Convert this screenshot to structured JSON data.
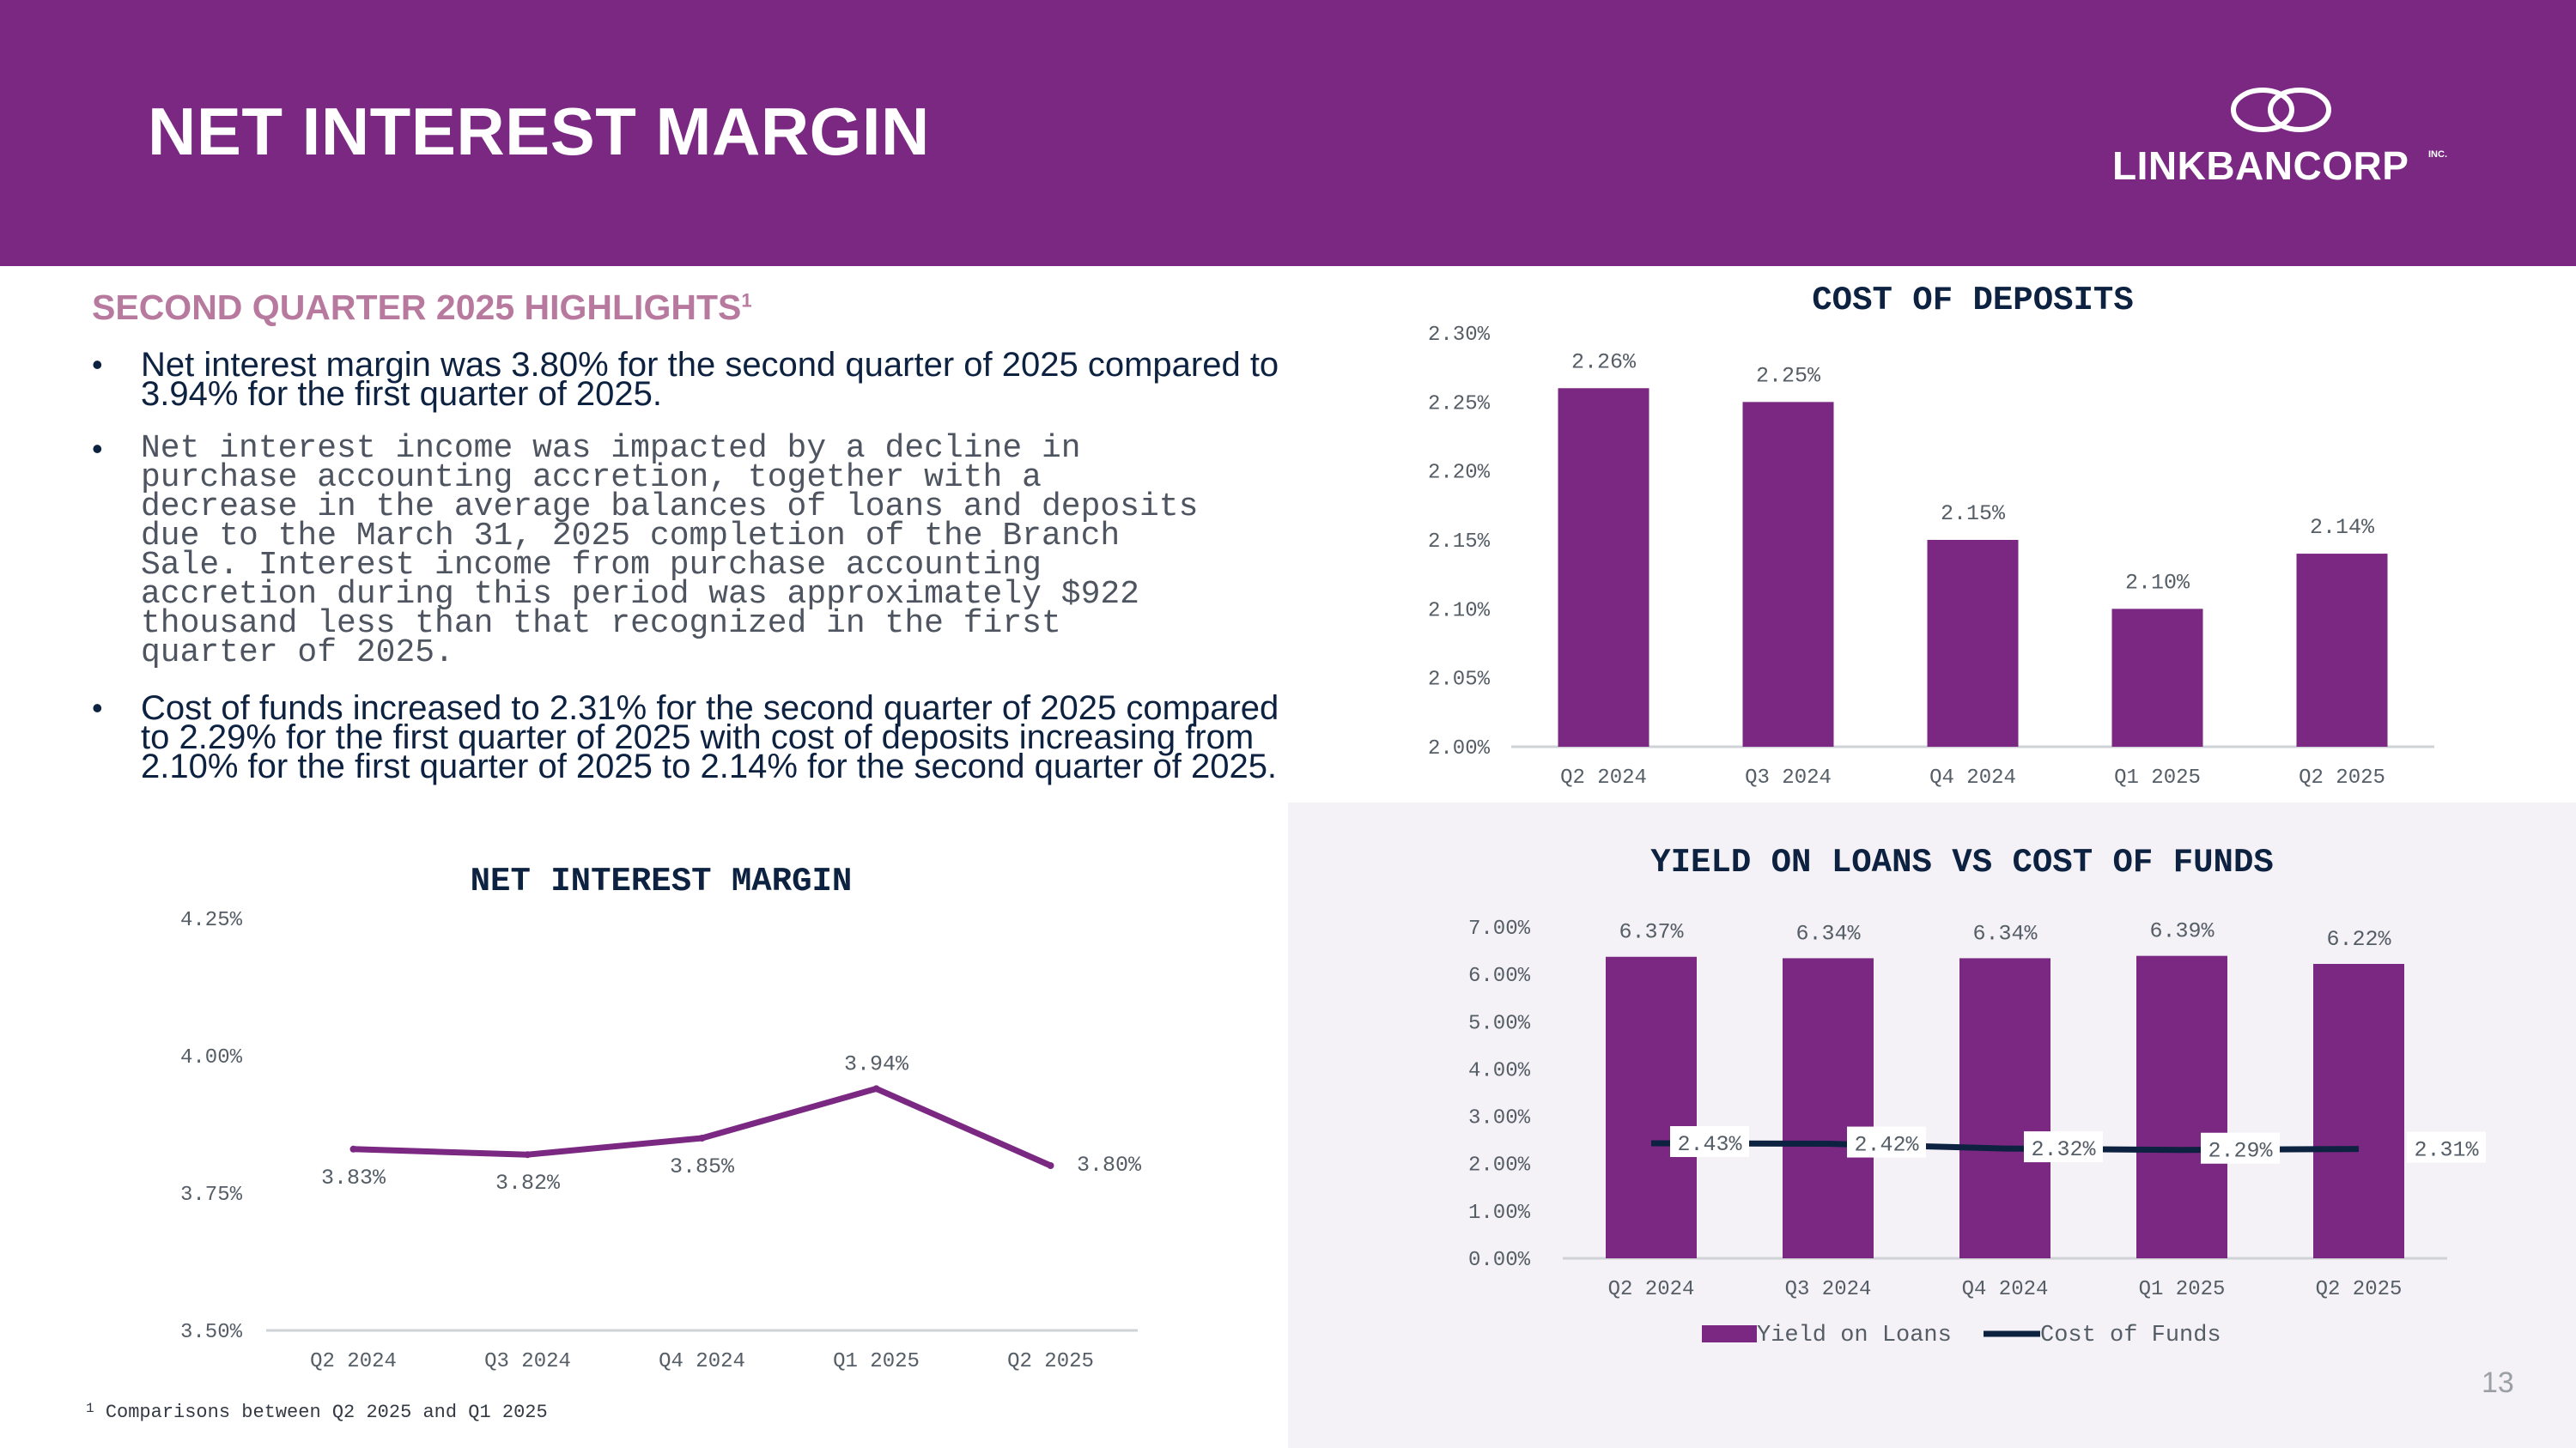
{
  "slide": {
    "title": "NET INTEREST MARGIN",
    "logo_text": "LINKBANCORP",
    "logo_suffix": "INC.",
    "page_number": "13",
    "footnote_marker": "1",
    "footnote": "Comparisons between Q2 2025 and Q1 2025"
  },
  "highlights": {
    "heading": "SECOND QUARTER 2025 HIGHLIGHTS",
    "heading_sup": "1",
    "bullets": [
      "Net interest margin was 3.80% for the second quarter of 2025 compared to 3.94% for the first quarter of 2025.",
      "Net interest income was impacted by a decline in\npurchase accounting accretion, together with a\ndecrease in the average balances of loans and deposits\ndue to the March 31, 2025 completion of the Branch\nSale.  Interest income from purchase accounting\naccretion during this period was approximately $922\nthousand less than that recognized in the first\nquarter of 2025.",
      "Cost of funds increased to 2.31% for the second quarter of 2025 compared to 2.29% for the first quarter of 2025 with cost of deposits increasing from 2.10% for the first quarter of 2025 to 2.14% for the second quarter of 2025."
    ]
  },
  "colors": {
    "brand_purple": "#7a2882",
    "navy": "#0d2240",
    "heading_pink": "#b8799f",
    "panel_gray": "#f4f2f6"
  },
  "chart_data": [
    {
      "id": "cost_of_deposits",
      "type": "bar",
      "title": "COST OF DEPOSITS",
      "categories": [
        "Q2 2024",
        "Q3 2024",
        "Q4 2024",
        "Q1 2025",
        "Q2 2025"
      ],
      "values": [
        2.26,
        2.25,
        2.15,
        2.1,
        2.14
      ],
      "value_labels": [
        "2.26%",
        "2.25%",
        "2.15%",
        "2.10%",
        "2.14%"
      ],
      "ylim": [
        2.0,
        2.3
      ],
      "yticks": [
        "2.00%",
        "2.05%",
        "2.10%",
        "2.15%",
        "2.20%",
        "2.25%",
        "2.30%"
      ],
      "grid": false
    },
    {
      "id": "net_interest_margin",
      "type": "line",
      "title": "NET INTEREST MARGIN",
      "categories": [
        "Q2 2024",
        "Q3 2024",
        "Q4 2024",
        "Q1 2025",
        "Q2 2025"
      ],
      "values": [
        3.83,
        3.82,
        3.85,
        3.94,
        3.8
      ],
      "value_labels": [
        "3.83%",
        "3.82%",
        "3.85%",
        "3.94%",
        "3.80%"
      ],
      "ylim": [
        3.5,
        4.25
      ],
      "yticks": [
        "3.50%",
        "3.75%",
        "4.00%",
        "4.25%"
      ],
      "grid": false
    },
    {
      "id": "yield_vs_cost",
      "type": "bar",
      "title": "YIELD ON LOANS VS COST OF FUNDS",
      "categories": [
        "Q2 2024",
        "Q3 2024",
        "Q4 2024",
        "Q1 2025",
        "Q2 2025"
      ],
      "series": [
        {
          "name": "Yield on Loans",
          "kind": "bar",
          "values": [
            6.37,
            6.34,
            6.34,
            6.39,
            6.22
          ],
          "labels": [
            "6.37%",
            "6.34%",
            "6.34%",
            "6.39%",
            "6.22%"
          ]
        },
        {
          "name": "Cost of Funds",
          "kind": "line",
          "values": [
            2.43,
            2.42,
            2.32,
            2.29,
            2.31
          ],
          "labels": [
            "2.43%",
            "2.42%",
            "2.32%",
            "2.29%",
            "2.31%"
          ]
        }
      ],
      "ylim": [
        0,
        7
      ],
      "yticks": [
        "0.00%",
        "1.00%",
        "2.00%",
        "3.00%",
        "4.00%",
        "5.00%",
        "6.00%",
        "7.00%"
      ],
      "legend": "bottom",
      "grid": false
    }
  ]
}
